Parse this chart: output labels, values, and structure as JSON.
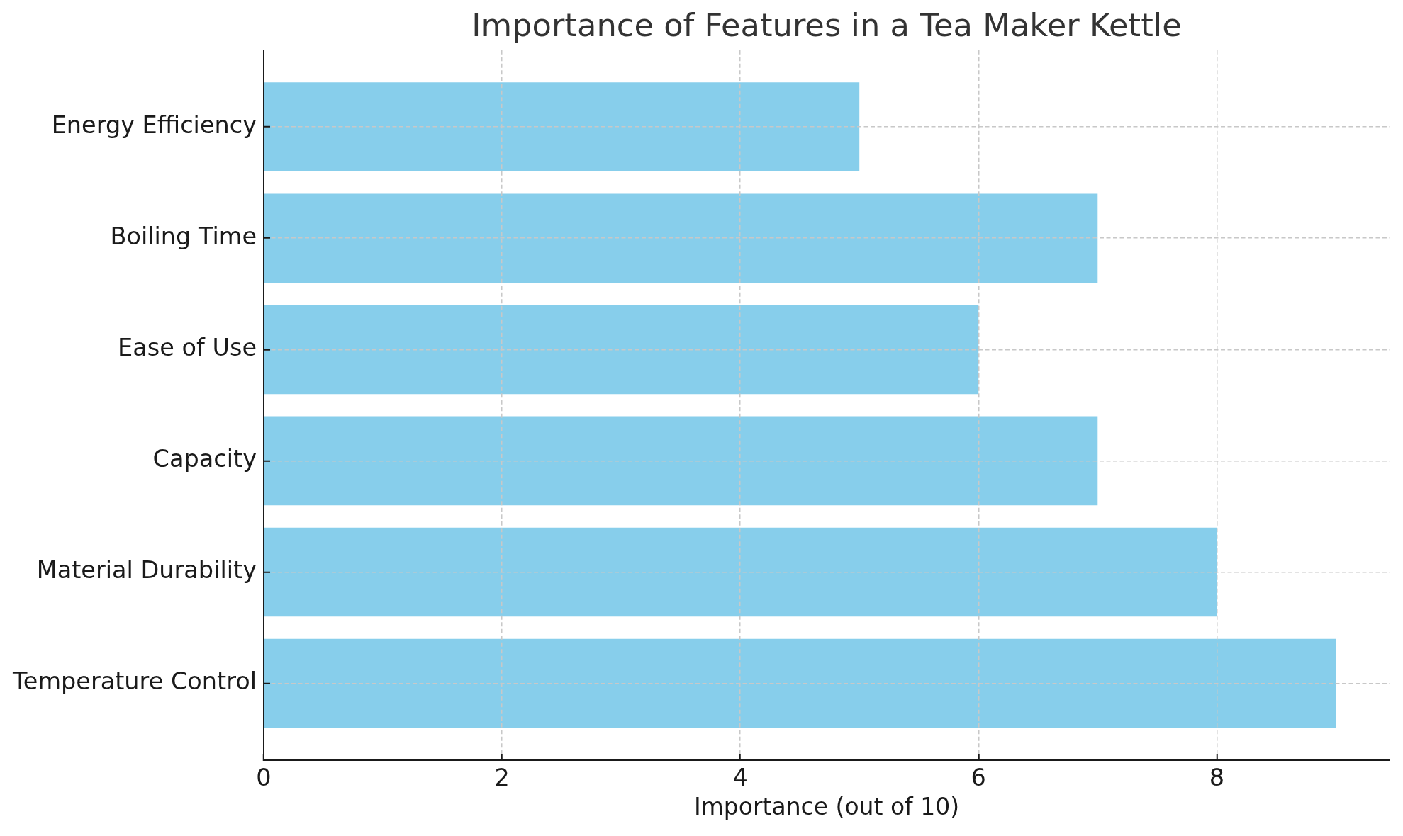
{
  "chart_data": {
    "type": "bar",
    "orientation": "horizontal",
    "title": "Importance of Features in a Tea Maker Kettle",
    "xlabel": "Importance (out of 10)",
    "categories": [
      "Energy Efficiency",
      "Boiling Time",
      "Ease of Use",
      "Capacity",
      "Material Durability",
      "Temperature Control"
    ],
    "values": [
      5,
      7,
      6,
      7,
      8,
      9
    ],
    "color": "#87ceeb",
    "xlim": [
      0,
      9.45
    ],
    "xticks": [
      0,
      2,
      4,
      6,
      8
    ],
    "grid": true
  }
}
